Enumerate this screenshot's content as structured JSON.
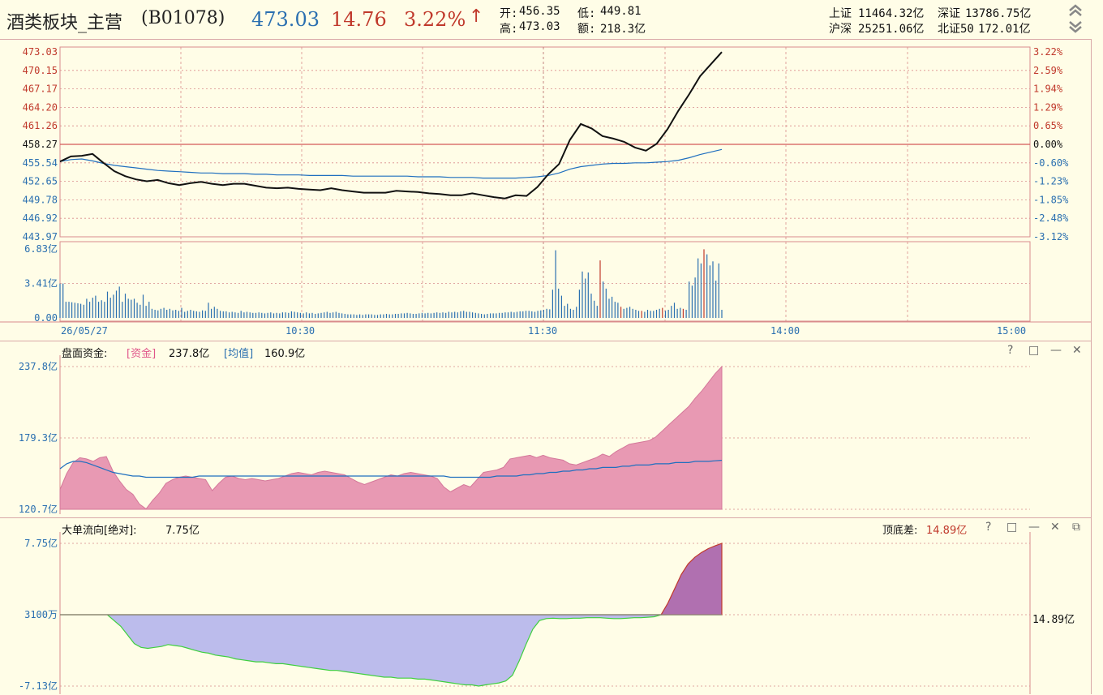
{
  "header": {
    "name": "酒类板块_主营",
    "code": "(B01078)",
    "price": "473.03",
    "change": "14.76",
    "pct": "3.22%",
    "arrow": "↑",
    "open_label": "开:",
    "open_value": "456.35",
    "low_label": "低:",
    "low_value": "449.81",
    "high_label": "高:",
    "high_value": "473.03",
    "amount_label": "额:",
    "amount_value": "218.3亿",
    "indices": [
      {
        "label": "上证",
        "value": "11464.32亿"
      },
      {
        "label": "深证",
        "value": "13786.75亿"
      },
      {
        "label": "沪深",
        "value": "25251.06亿"
      },
      {
        "label": "北证50",
        "value": "172.01亿"
      }
    ]
  },
  "colors": {
    "bg": "#fffde7",
    "up": "#c0392b",
    "down": "#2a6fb0",
    "price_line": "#111111",
    "avg_line": "#1f6fbf",
    "grid": "#d98c8c",
    "fund_fill": "#e899b3",
    "flow_pos": "#b070b0",
    "flow_neg": "#bcbcec",
    "flow_neg_edge": "#3fcf3f"
  },
  "icons": {
    "expand": "double-chevron-up-icon",
    "collapse": "double-chevron-down-icon"
  },
  "main_chart": {
    "left_ticks": [
      "473.03",
      "470.15",
      "467.17",
      "464.20",
      "461.26",
      "458.27",
      "455.54",
      "452.65",
      "449.78",
      "446.92",
      "443.97"
    ],
    "right_ticks": [
      "3.22%",
      "2.59%",
      "1.94%",
      "1.29%",
      "0.65%",
      "0.00%",
      "-0.60%",
      "-1.23%",
      "-1.85%",
      "-2.48%",
      "-3.12%"
    ],
    "volume_ticks": [
      "6.83亿",
      "3.41亿",
      "0.00"
    ],
    "time_labels": [
      "26/05/27",
      "10:30",
      "11:30",
      "14:00",
      "15:00"
    ]
  },
  "fund_panel": {
    "title": "盘面资金:",
    "fund_label": "[资金]",
    "fund_value": "237.8亿",
    "avg_label": "[均值]",
    "avg_value": "160.9亿",
    "ticks": [
      "237.8亿",
      "179.3亿",
      "120.7亿"
    ]
  },
  "flow_panel": {
    "title": "大单流向[绝对]:",
    "value": "7.75亿",
    "diff_label": "顶底差:",
    "diff_value": "14.89亿",
    "ticks": [
      "7.75亿",
      "3100万",
      "-7.13亿"
    ],
    "right_value": "14.89亿"
  },
  "panel_controls": {
    "help": "?",
    "maximize": "□",
    "minimize": "—",
    "close": "✕",
    "restore": "⧉"
  },
  "chart_data": [
    {
      "type": "line",
      "title": "酒类板块_主营(B01078)",
      "series": [
        {
          "values": [
            455.8,
            456.6,
            456.7,
            457.0,
            455.6,
            454.3,
            453.5,
            453.0,
            452.7,
            452.9,
            452.4,
            452.1,
            452.4,
            452.6,
            452.3,
            452.1,
            452.3,
            452.3,
            452.0,
            451.7,
            451.6,
            451.7,
            451.5,
            451.4,
            451.3,
            451.6,
            451.3,
            451.1,
            450.9,
            450.9,
            450.9,
            451.2,
            451.1,
            451.0,
            450.8,
            450.7,
            450.5,
            450.5,
            450.8,
            450.5,
            450.2,
            450.0,
            450.5,
            450.4,
            451.8,
            453.8,
            455.4,
            459.2,
            461.7,
            461.0,
            459.8,
            459.4,
            458.9,
            458.0,
            457.5,
            458.6,
            460.9,
            463.8,
            466.4,
            469.2,
            471.1,
            473.0
          ]
        },
        {
          "values": [
            455.8,
            456.1,
            456.2,
            455.9,
            455.5,
            455.2,
            455.0,
            454.8,
            454.6,
            454.4,
            454.3,
            454.2,
            454.1,
            454.0,
            454.0,
            453.9,
            453.9,
            453.9,
            453.8,
            453.8,
            453.7,
            453.7,
            453.7,
            453.6,
            453.6,
            453.6,
            453.6,
            453.5,
            453.5,
            453.5,
            453.5,
            453.5,
            453.5,
            453.4,
            453.4,
            453.4,
            453.3,
            453.3,
            453.3,
            453.2,
            453.2,
            453.2,
            453.2,
            453.3,
            453.4,
            453.6,
            454.0,
            454.6,
            455.0,
            455.2,
            455.4,
            455.5,
            455.5,
            455.6,
            455.6,
            455.7,
            455.8,
            456.0,
            456.4,
            456.9,
            457.3,
            457.7
          ]
        }
      ],
      "ylim": [
        443.97,
        473.03
      ]
    },
    {
      "type": "bar",
      "values": [
        3.41,
        3.41,
        1.6,
        1.6,
        1.55,
        1.5,
        1.45,
        1.4,
        1.3,
        1.9,
        1.6,
        2.0,
        2.2,
        1.6,
        1.75,
        1.6,
        2.6,
        2.0,
        2.3,
        2.7,
        3.1,
        1.6,
        2.4,
        1.9,
        1.8,
        1.9,
        1.5,
        1.3,
        2.3,
        1.2,
        1.6,
        0.9,
        0.8,
        0.75,
        0.9,
        1.0,
        0.8,
        0.9,
        0.75,
        0.8,
        0.7,
        1.0,
        0.6,
        0.7,
        0.8,
        0.7,
        0.65,
        0.6,
        0.75,
        0.7,
        1.5,
        0.9,
        1.1,
        0.9,
        0.7,
        0.65,
        0.65,
        0.55,
        0.6,
        0.55,
        0.5,
        0.7,
        0.55,
        0.6,
        0.55,
        0.5,
        0.5,
        0.55,
        0.5,
        0.45,
        0.5,
        0.55,
        0.45,
        0.5,
        0.45,
        0.55,
        0.55,
        0.5,
        0.65,
        0.6,
        0.55,
        0.5,
        0.45,
        0.55,
        0.45,
        0.5,
        0.4,
        0.45,
        0.5,
        0.55,
        0.6,
        0.5,
        0.55,
        0.6,
        0.5,
        0.45,
        0.4,
        0.35,
        0.35,
        0.35,
        0.3,
        0.35,
        0.3,
        0.35,
        0.35,
        0.35,
        0.3,
        0.3,
        0.35,
        0.35,
        0.4,
        0.35,
        0.35,
        0.4,
        0.4,
        0.45,
        0.45,
        0.5,
        0.45,
        0.4,
        0.4,
        0.45,
        0.5,
        0.45,
        0.5,
        0.45,
        0.5,
        0.55,
        0.5,
        0.55,
        0.5,
        0.6,
        0.55,
        0.6,
        0.55,
        0.65,
        0.7,
        0.6,
        0.6,
        0.55,
        0.5,
        0.45,
        0.4,
        0.35,
        0.4,
        0.45,
        0.45,
        0.45,
        0.5,
        0.5,
        0.55,
        0.55,
        0.6,
        0.55,
        0.6,
        0.65,
        0.65,
        0.7,
        0.7,
        0.65,
        0.6,
        0.7,
        0.75,
        0.8,
        0.9,
        0.85,
        2.8,
        6.7,
        2.9,
        2.2,
        1.2,
        1.4,
        0.9,
        0.8,
        1.1,
        2.8,
        4.6,
        3.9,
        4.5,
        2.4,
        1.7,
        1.2,
        5.7,
        3.6,
        2.9,
        1.9,
        2.1,
        1.6,
        1.5,
        1.1,
        0.9,
        1.0,
        1.1,
        0.9,
        0.8,
        0.7,
        0.7,
        0.6,
        0.8,
        0.7,
        0.7,
        0.8,
        0.9,
        1.0,
        0.7,
        0.8,
        1.2,
        1.5,
        0.9,
        1.0,
        0.9,
        0.8,
        3.6,
        3.2,
        4.0,
        5.9,
        5.4,
        6.8,
        6.3,
        5.2,
        5.6,
        3.7,
        5.4,
        0.8
      ],
      "ylim": [
        0,
        6.83
      ]
    },
    {
      "type": "area",
      "title": "盘面资金",
      "series": [
        {
          "name": "资金",
          "values": [
            137,
            150,
            159,
            163,
            162,
            160,
            163,
            164,
            152,
            144,
            137,
            133,
            125,
            121,
            128,
            134,
            142,
            145,
            147,
            148,
            147,
            146,
            145,
            136,
            142,
            147,
            148,
            146,
            145,
            146,
            145,
            144,
            145,
            146,
            148,
            150,
            151,
            150,
            149,
            151,
            152,
            151,
            150,
            149,
            146,
            143,
            141,
            143,
            145,
            147,
            149,
            148,
            150,
            151,
            150,
            149,
            148,
            146,
            139,
            135,
            138,
            141,
            139,
            145,
            151,
            152,
            153,
            155,
            162,
            163,
            164,
            165,
            163,
            165,
            163,
            162,
            161,
            158,
            157,
            159,
            161,
            163,
            166,
            164,
            168,
            171,
            174,
            175,
            176,
            177,
            180,
            185,
            190,
            195,
            200,
            205,
            212,
            218,
            225,
            232,
            237.8
          ]
        },
        {
          "name": "均值",
          "values": [
            154,
            158,
            160,
            160,
            159,
            157,
            155,
            153,
            151,
            150,
            149,
            148,
            148,
            147,
            147,
            147,
            147,
            147,
            147,
            147,
            147,
            148,
            148,
            148,
            148,
            148,
            148,
            148,
            148,
            148,
            148,
            148,
            148,
            148,
            148,
            148,
            148,
            148,
            148,
            148,
            148,
            148,
            148,
            148,
            148,
            148,
            148,
            148,
            148,
            148,
            148,
            148,
            148,
            148,
            148,
            148,
            148,
            148,
            148,
            147,
            147,
            147,
            147,
            147,
            147,
            147,
            148,
            148,
            148,
            148,
            149,
            149,
            150,
            150,
            151,
            151,
            152,
            152,
            153,
            153,
            154,
            154,
            155,
            155,
            155,
            156,
            156,
            157,
            157,
            157,
            158,
            158,
            158,
            159,
            159,
            159,
            160,
            160,
            160,
            160.5,
            160.9
          ]
        }
      ],
      "ylim": [
        120.7,
        237.8
      ]
    },
    {
      "type": "area",
      "title": "大单流向[绝对]",
      "values": [
        0.31,
        0.31,
        0.31,
        0.31,
        0.31,
        0.31,
        0.31,
        0.31,
        -0.3,
        -0.9,
        -1.8,
        -2.7,
        -3.1,
        -3.2,
        -3.1,
        -3.0,
        -2.8,
        -2.9,
        -3.0,
        -3.2,
        -3.4,
        -3.6,
        -3.7,
        -3.9,
        -4.0,
        -4.1,
        -4.3,
        -4.4,
        -4.5,
        -4.6,
        -4.6,
        -4.7,
        -4.8,
        -4.8,
        -4.9,
        -5.0,
        -5.1,
        -5.2,
        -5.3,
        -5.4,
        -5.5,
        -5.5,
        -5.6,
        -5.7,
        -5.8,
        -5.9,
        -6.0,
        -6.1,
        -6.2,
        -6.2,
        -6.3,
        -6.3,
        -6.3,
        -6.4,
        -6.4,
        -6.5,
        -6.6,
        -6.7,
        -6.8,
        -6.9,
        -7.0,
        -7.0,
        -7.13,
        -7.0,
        -6.9,
        -6.8,
        -6.6,
        -6.0,
        -4.5,
        -2.8,
        -1.2,
        -0.3,
        -0.1,
        -0.05,
        -0.1,
        -0.1,
        -0.05,
        -0.05,
        0.0,
        0.0,
        0.0,
        -0.05,
        -0.1,
        -0.1,
        -0.05,
        0.0,
        0.0,
        0.05,
        0.1,
        0.3,
        1.5,
        3.0,
        4.5,
        5.6,
        6.3,
        6.8,
        7.2,
        7.5,
        7.75
      ],
      "ylim": [
        -7.13,
        7.75
      ]
    }
  ]
}
